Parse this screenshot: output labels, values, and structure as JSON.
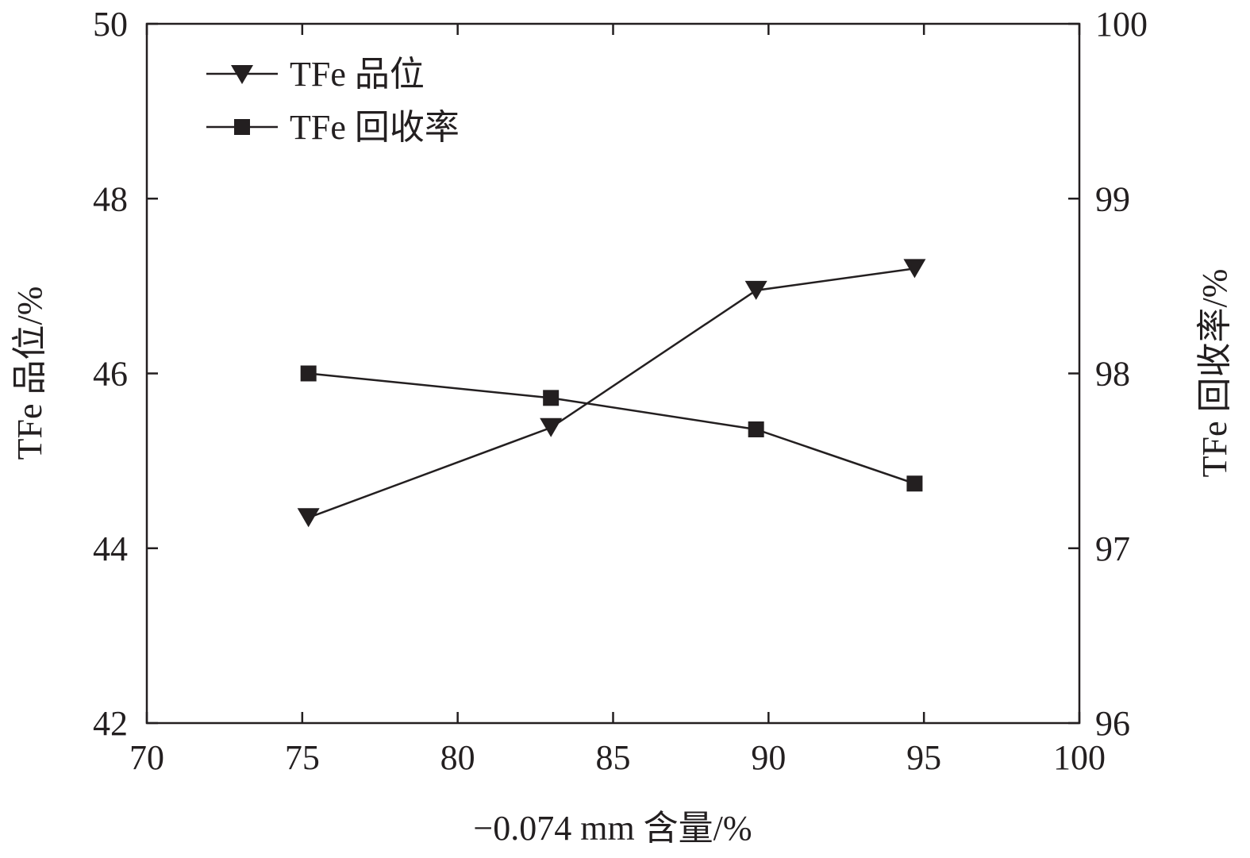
{
  "chart_data": {
    "type": "line",
    "xlabel": "−0.074 mm 含量/%",
    "ylabel_left": "TFe 品位/%",
    "ylabel_right": "TFe 回收率/%",
    "xlim": [
      70,
      100
    ],
    "ylim_left": [
      42,
      50
    ],
    "ylim_right": [
      96,
      100
    ],
    "x_ticks": [
      70,
      75,
      80,
      85,
      90,
      95,
      100
    ],
    "y_left_ticks": [
      42,
      44,
      46,
      48,
      50
    ],
    "y_right_ticks": [
      96,
      97,
      98,
      99,
      100
    ],
    "grid": false,
    "legend_position": "top-left",
    "series": [
      {
        "name": "TFe 品位",
        "axis": "left",
        "marker": "triangle-down",
        "x": [
          75.2,
          83.0,
          89.6,
          94.7
        ],
        "y": [
          44.35,
          45.38,
          46.95,
          47.2
        ]
      },
      {
        "name": "TFe 回收率",
        "axis": "right",
        "marker": "square",
        "x": [
          75.2,
          83.0,
          89.6,
          94.7
        ],
        "y": [
          98.0,
          97.86,
          97.68,
          97.37
        ]
      }
    ]
  }
}
